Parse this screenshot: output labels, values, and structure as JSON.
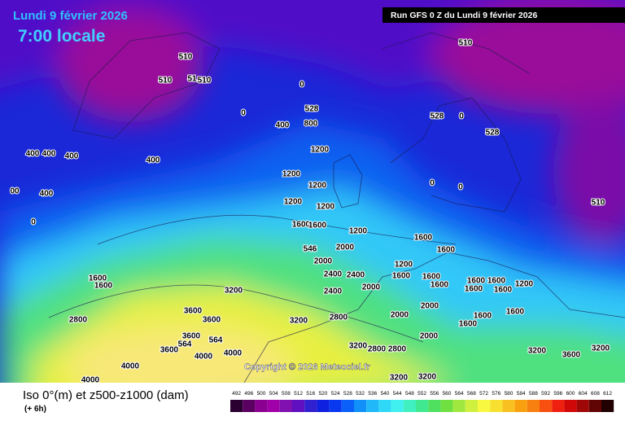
{
  "header": {
    "date": "Lundi 9 février 2026",
    "time": "7:00 locale",
    "run": "Run GFS 0 Z du Lundi 9 février 2026"
  },
  "map": {
    "copyright": "Copyright © 2026 Meteociel.fr",
    "contour_labels": [
      "510",
      "510",
      "51",
      "510",
      "0",
      "528",
      "0",
      "400",
      "800",
      "400",
      "400",
      "400",
      "400",
      "1200",
      "1200",
      "1200",
      "00",
      "400",
      "1200",
      "1200",
      "0",
      "1600",
      "1600",
      "1200",
      "1600",
      "546",
      "2000",
      "2000",
      "2400",
      "2400",
      "1200",
      "1600",
      "1600",
      "3200",
      "2400",
      "2000",
      "1600",
      "1600",
      "1600",
      "1200",
      "3600",
      "3600",
      "2800",
      "2000",
      "2000",
      "1600",
      "1600",
      "3200",
      "2800",
      "3600",
      "564",
      "564",
      "3600",
      "4000",
      "4000",
      "3200",
      "2800",
      "2800",
      "4000",
      "3200",
      "3600",
      "3200",
      "3200",
      "3200",
      "4000",
      "510",
      "528",
      "0",
      "528",
      "510",
      "0",
      "0",
      "1600",
      "1600",
      "1600",
      "1600",
      "1600",
      "2000",
      "1600"
    ]
  },
  "legend": {
    "title": "Iso 0°(m) et z500-z1000 (dam)",
    "step": "(+ 6h)",
    "labels": [
      492,
      496,
      500,
      504,
      508,
      512,
      516,
      520,
      524,
      528,
      532,
      536,
      540,
      544,
      548,
      552,
      556,
      560,
      564,
      568,
      572,
      576,
      580,
      584,
      588,
      592,
      596,
      600,
      604,
      608,
      612
    ],
    "colors": [
      "#2a0030",
      "#5a0060",
      "#8a0090",
      "#a000a8",
      "#8010b0",
      "#6010c0",
      "#3020d0",
      "#1020e0",
      "#0838f0",
      "#0a60f8",
      "#1090f8",
      "#20b8f8",
      "#30d8f8",
      "#40f0f0",
      "#40f0c0",
      "#40e890",
      "#50e060",
      "#70e040",
      "#a0e840",
      "#d0f040",
      "#f8f840",
      "#f8e030",
      "#f8c020",
      "#f8a010",
      "#f88010",
      "#f85010",
      "#f02010",
      "#d00808",
      "#a00808",
      "#600404",
      "#200000"
    ]
  }
}
